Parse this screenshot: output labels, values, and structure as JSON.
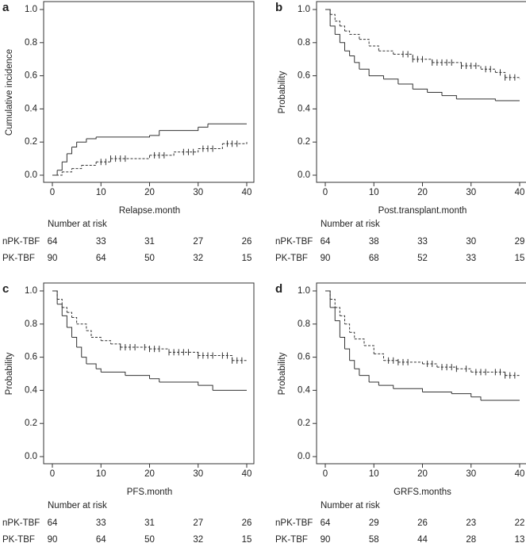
{
  "chart_data": [
    {
      "type": "step",
      "panel": "a",
      "ylabel": "Cumulative incidence",
      "xlabel": "Relapse.month",
      "xlim": [
        0,
        40
      ],
      "xticks": [
        0,
        10,
        20,
        30,
        40
      ],
      "ylim": [
        0,
        1
      ],
      "yticks": [
        {
          "value": 0,
          "label": "0.0"
        },
        {
          "value": 0.2,
          "label": "0.2"
        },
        {
          "value": 0.4,
          "label": "0.4"
        },
        {
          "value": 0.6,
          "label": "0.6"
        },
        {
          "value": 0.8,
          "label": "0.8"
        },
        {
          "value": 1,
          "label": "1.0"
        }
      ],
      "series": [
        {
          "color": "#333333",
          "dash": false,
          "x": [
            0,
            1,
            2,
            3,
            4,
            5,
            7,
            9,
            20,
            22,
            30,
            32,
            40
          ],
          "values": [
            0,
            0.03,
            0.08,
            0.13,
            0.17,
            0.2,
            0.22,
            0.23,
            0.24,
            0.27,
            0.29,
            0.31,
            0.31
          ],
          "censor": []
        },
        {
          "color": "#333333",
          "dash": true,
          "x": [
            0,
            2,
            4,
            6,
            9,
            12,
            20,
            25,
            30,
            35,
            40
          ],
          "values": [
            0,
            0.02,
            0.04,
            0.06,
            0.08,
            0.1,
            0.12,
            0.14,
            0.16,
            0.19,
            0.2
          ],
          "censor": [
            10,
            11,
            12,
            13,
            14,
            15,
            21,
            22,
            23,
            27,
            28,
            29,
            31,
            32,
            33,
            36,
            37,
            38
          ]
        }
      ],
      "risk_table": {
        "title": "Number at risk",
        "rows": [
          {
            "name": "nPK-TBF",
            "values": [
              64,
              33,
              31,
              27,
              26
            ]
          },
          {
            "name": "PK-TBF",
            "values": [
              90,
              64,
              50,
              32,
              15
            ]
          }
        ]
      }
    },
    {
      "type": "step",
      "panel": "b",
      "ylabel": "Probability",
      "xlabel": "Post.transplant.month",
      "xlim": [
        0,
        40
      ],
      "xticks": [
        0,
        10,
        20,
        30,
        40
      ],
      "ylim": [
        0,
        1
      ],
      "yticks": [
        {
          "value": 0,
          "label": "0.0"
        },
        {
          "value": 0.2,
          "label": "0.2"
        },
        {
          "value": 0.4,
          "label": "0.4"
        },
        {
          "value": 0.6,
          "label": "0.6"
        },
        {
          "value": 0.8,
          "label": "0.8"
        },
        {
          "value": 1,
          "label": "1.0"
        }
      ],
      "series": [
        {
          "color": "#333333",
          "dash": false,
          "x": [
            0,
            1,
            2,
            3,
            4,
            5,
            6,
            7,
            9,
            12,
            15,
            18,
            21,
            24,
            27,
            35,
            40
          ],
          "values": [
            1,
            0.9,
            0.85,
            0.8,
            0.75,
            0.72,
            0.68,
            0.64,
            0.6,
            0.58,
            0.55,
            0.52,
            0.5,
            0.48,
            0.46,
            0.45,
            0.45
          ],
          "censor": []
        },
        {
          "color": "#333333",
          "dash": true,
          "x": [
            0,
            1,
            2,
            3,
            4,
            5,
            7,
            9,
            11,
            14,
            18,
            22,
            28,
            32,
            35,
            37,
            40
          ],
          "values": [
            1,
            0.97,
            0.93,
            0.9,
            0.87,
            0.85,
            0.82,
            0.78,
            0.75,
            0.73,
            0.7,
            0.68,
            0.66,
            0.64,
            0.62,
            0.59,
            0.58
          ],
          "censor": [
            16,
            17,
            18,
            19,
            20,
            22,
            23,
            24,
            25,
            26,
            28,
            29,
            30,
            31,
            33,
            34,
            36,
            37,
            38,
            39
          ]
        }
      ],
      "risk_table": {
        "title": "Number at risk",
        "rows": [
          {
            "name": "nPK-TBF",
            "values": [
              64,
              38,
              33,
              30,
              29
            ]
          },
          {
            "name": "PK-TBF",
            "values": [
              90,
              68,
              52,
              33,
              15
            ]
          }
        ]
      }
    },
    {
      "type": "step",
      "panel": "c",
      "ylabel": "Probability",
      "xlabel": "PFS.month",
      "xlim": [
        0,
        40
      ],
      "xticks": [
        0,
        10,
        20,
        30,
        40
      ],
      "ylim": [
        0,
        1
      ],
      "yticks": [
        {
          "value": 0,
          "label": "0.0"
        },
        {
          "value": 0.2,
          "label": "0.2"
        },
        {
          "value": 0.4,
          "label": "0.4"
        },
        {
          "value": 0.6,
          "label": "0.6"
        },
        {
          "value": 0.8,
          "label": "0.8"
        },
        {
          "value": 1,
          "label": "1.0"
        }
      ],
      "series": [
        {
          "color": "#333333",
          "dash": false,
          "x": [
            0,
            1,
            2,
            3,
            4,
            5,
            6,
            7,
            9,
            10,
            15,
            20,
            22,
            30,
            33,
            40
          ],
          "values": [
            1,
            0.92,
            0.85,
            0.78,
            0.72,
            0.66,
            0.6,
            0.56,
            0.53,
            0.51,
            0.49,
            0.47,
            0.45,
            0.43,
            0.4,
            0.4
          ],
          "censor": []
        },
        {
          "color": "#333333",
          "dash": true,
          "x": [
            0,
            1,
            2,
            3,
            4,
            5,
            7,
            8,
            10,
            12,
            14,
            20,
            24,
            30,
            37,
            40
          ],
          "values": [
            1,
            0.95,
            0.9,
            0.87,
            0.84,
            0.8,
            0.76,
            0.72,
            0.7,
            0.68,
            0.66,
            0.65,
            0.63,
            0.61,
            0.58,
            0.58
          ],
          "censor": [
            14,
            15,
            16,
            17,
            19,
            20,
            21,
            22,
            24,
            25,
            26,
            27,
            28,
            30,
            31,
            32,
            33,
            35,
            36,
            37,
            38,
            39
          ]
        }
      ],
      "risk_table": {
        "title": "Number at risk",
        "rows": [
          {
            "name": "nPK-TBF",
            "values": [
              64,
              33,
              31,
              27,
              26
            ]
          },
          {
            "name": "PK-TBF",
            "values": [
              90,
              64,
              50,
              32,
              15
            ]
          }
        ]
      }
    },
    {
      "type": "step",
      "panel": "d",
      "ylabel": "Probability",
      "xlabel": "GRFS.months",
      "xlim": [
        0,
        40
      ],
      "xticks": [
        0,
        10,
        20,
        30,
        40
      ],
      "ylim": [
        0,
        1
      ],
      "yticks": [
        {
          "value": 0,
          "label": "0.0"
        },
        {
          "value": 0.2,
          "label": "0.2"
        },
        {
          "value": 0.4,
          "label": "0.4"
        },
        {
          "value": 0.6,
          "label": "0.6"
        },
        {
          "value": 0.8,
          "label": "0.8"
        },
        {
          "value": 1,
          "label": "1.0"
        }
      ],
      "series": [
        {
          "color": "#333333",
          "dash": false,
          "x": [
            0,
            1,
            2,
            3,
            4,
            5,
            6,
            7,
            9,
            11,
            14,
            20,
            26,
            30,
            32,
            40
          ],
          "values": [
            1,
            0.9,
            0.82,
            0.72,
            0.65,
            0.58,
            0.53,
            0.49,
            0.45,
            0.43,
            0.41,
            0.39,
            0.38,
            0.36,
            0.34,
            0.34
          ],
          "censor": []
        },
        {
          "color": "#333333",
          "dash": true,
          "x": [
            0,
            1,
            2,
            3,
            4,
            5,
            6,
            8,
            10,
            12,
            15,
            20,
            23,
            27,
            30,
            37,
            40
          ],
          "values": [
            1,
            0.95,
            0.9,
            0.85,
            0.8,
            0.75,
            0.71,
            0.67,
            0.62,
            0.58,
            0.57,
            0.56,
            0.54,
            0.53,
            0.51,
            0.49,
            0.49
          ],
          "censor": [
            13,
            14,
            15,
            16,
            17,
            21,
            22,
            24,
            25,
            26,
            27,
            29,
            31,
            32,
            33,
            35,
            36,
            37,
            38,
            39
          ]
        }
      ],
      "risk_table": {
        "title": "Number at risk",
        "rows": [
          {
            "name": "nPK-TBF",
            "values": [
              64,
              29,
              26,
              23,
              22
            ]
          },
          {
            "name": "PK-TBF",
            "values": [
              90,
              58,
              44,
              28,
              13
            ]
          }
        ]
      }
    }
  ]
}
